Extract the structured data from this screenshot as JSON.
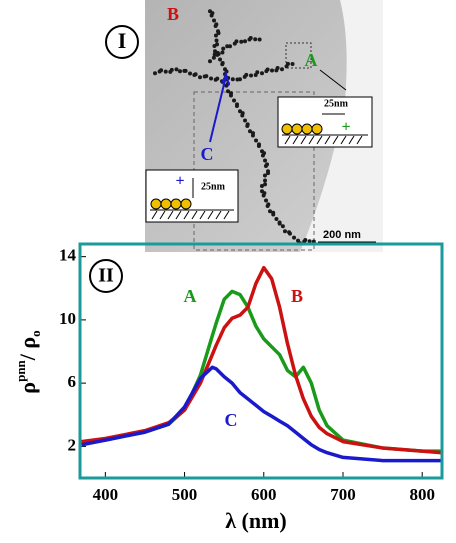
{
  "panel_I": {
    "label": "I",
    "marker_B": "B",
    "marker_A": "A",
    "marker_C": "C",
    "inset_right_distance": "25nm",
    "inset_right_sign": "+",
    "inset_left_distance": "25nm",
    "inset_left_sign": "+",
    "scale_bar": "200 nm"
  },
  "chart_data": {
    "type": "line",
    "panel_label": "II",
    "xlabel": "λ (nm)",
    "ylabel": [
      "ρ",
      "pnn",
      "/ ρ",
      "o"
    ],
    "x": [
      370,
      400,
      450,
      480,
      500,
      520,
      535,
      540,
      550,
      560,
      570,
      580,
      590,
      600,
      610,
      620,
      630,
      640,
      650,
      660,
      670,
      680,
      700,
      750,
      800,
      825
    ],
    "series": [
      {
        "name": "A",
        "color": "#1a9a1a",
        "values": [
          2.2,
          2.4,
          2.9,
          3.4,
          4.3,
          6.5,
          9.0,
          9.8,
          11.3,
          11.8,
          11.6,
          10.8,
          9.6,
          8.8,
          8.3,
          7.8,
          6.8,
          6.4,
          7.0,
          6.0,
          4.3,
          3.3,
          2.4,
          1.9,
          1.7,
          1.7
        ]
      },
      {
        "name": "B",
        "color": "#cc1111",
        "values": [
          2.3,
          2.5,
          3.0,
          3.5,
          4.3,
          6.0,
          7.8,
          8.4,
          9.5,
          10.1,
          10.3,
          10.8,
          12.3,
          13.3,
          12.6,
          10.8,
          8.5,
          6.5,
          5.0,
          3.9,
          3.2,
          2.8,
          2.3,
          1.9,
          1.7,
          1.6
        ]
      },
      {
        "name": "C",
        "color": "#1a1acc",
        "values": [
          2.1,
          2.4,
          2.9,
          3.4,
          4.5,
          6.3,
          7.0,
          6.9,
          6.4,
          6.0,
          5.4,
          5.0,
          4.6,
          4.2,
          3.9,
          3.6,
          3.3,
          2.9,
          2.5,
          2.1,
          1.8,
          1.6,
          1.3,
          1.1,
          1.1,
          1.1
        ]
      }
    ],
    "xlim": [
      368,
      825
    ],
    "ylim": [
      0,
      14.8
    ],
    "xticks": [
      400,
      500,
      600,
      700,
      800
    ],
    "yticks": [
      2,
      6,
      10,
      14
    ],
    "frame_color": "#1a9a9a"
  }
}
